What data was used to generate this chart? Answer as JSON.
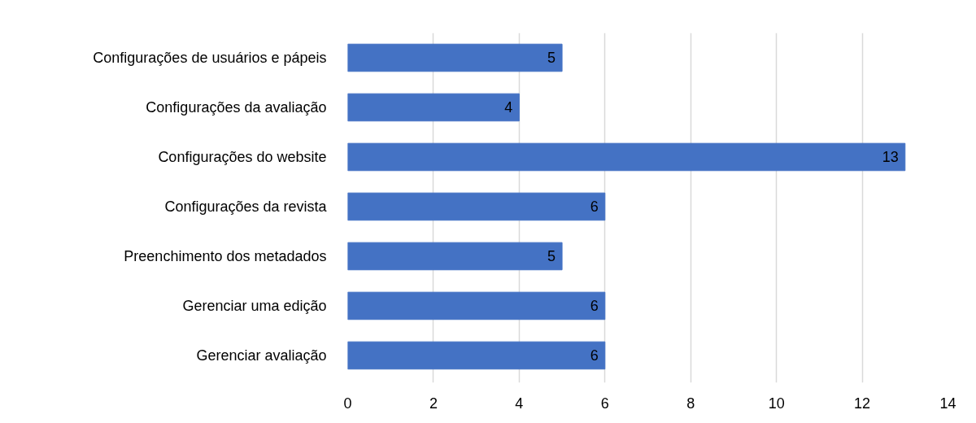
{
  "chart_data": {
    "type": "bar",
    "orientation": "horizontal",
    "categories": [
      "Configurações de usuários e pápeis",
      "Configurações da avaliação",
      "Configurações do website",
      "Configurações da revista",
      "Preenchimento dos metadados",
      "Gerenciar uma edição",
      "Gerenciar avaliação"
    ],
    "values": [
      5,
      4,
      13,
      6,
      5,
      6,
      6
    ],
    "color": "#4472c4",
    "xlim": [
      0,
      14
    ],
    "xticks": [
      0,
      2,
      4,
      6,
      8,
      10,
      12,
      14
    ],
    "grid": "x",
    "data_labels": true
  }
}
